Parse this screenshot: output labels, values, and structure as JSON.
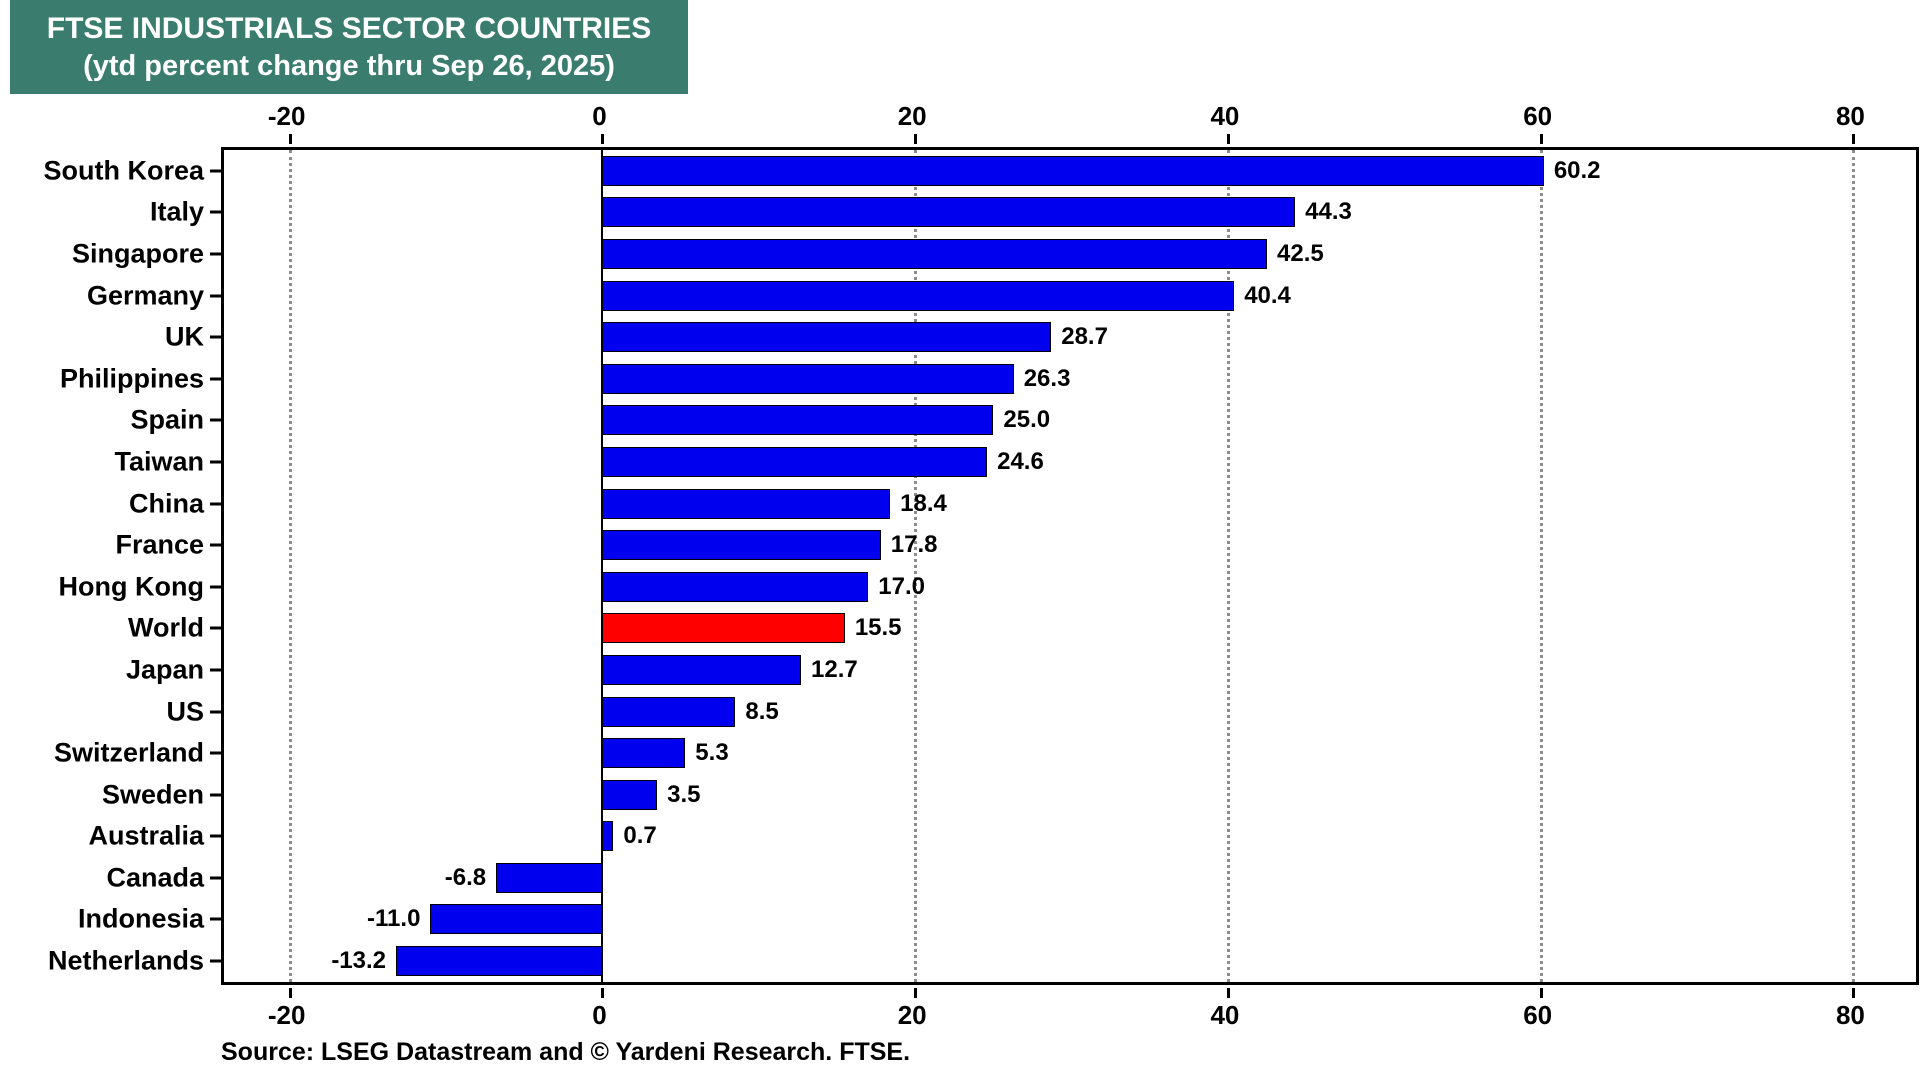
{
  "title": {
    "line1": "FTSE INDUSTRIALS SECTOR COUNTRIES",
    "line2": "(ytd percent change thru Sep 26, 2025)"
  },
  "source": "Source: LSEG Datastream and © Yardeni Research. FTSE.",
  "colors": {
    "bar": "#0000EE",
    "highlight": "#FF0000",
    "title_bg": "#3A7D6F",
    "title_text": "#FFFFFF",
    "grid": "#8C8C8C",
    "axis": "#000000"
  },
  "chart_data": {
    "type": "bar",
    "orientation": "horizontal",
    "title": "FTSE INDUSTRIALS SECTOR COUNTRIES (ytd percent change thru Sep 26, 2025)",
    "xlabel": "ytd percent change",
    "ylabel": "",
    "categories": [
      "South Korea",
      "Italy",
      "Singapore",
      "Germany",
      "UK",
      "Philippines",
      "Spain",
      "Taiwan",
      "China",
      "France",
      "Hong Kong",
      "World",
      "Japan",
      "US",
      "Switzerland",
      "Sweden",
      "Australia",
      "Canada",
      "Indonesia",
      "Netherlands"
    ],
    "values": [
      60.2,
      44.3,
      42.5,
      40.4,
      28.7,
      26.3,
      25.0,
      24.6,
      18.4,
      17.8,
      17.0,
      15.5,
      12.7,
      8.5,
      5.3,
      3.5,
      0.7,
      -6.8,
      -11.0,
      -13.2
    ],
    "highlight_category": "World",
    "xticks": [
      -20,
      0,
      20,
      40,
      60,
      80
    ],
    "xlim": [
      -24.2,
      84
    ],
    "grid": "vertical dotted at xticks, solid line at 0",
    "legend": "none",
    "value_labels_shown": true
  }
}
